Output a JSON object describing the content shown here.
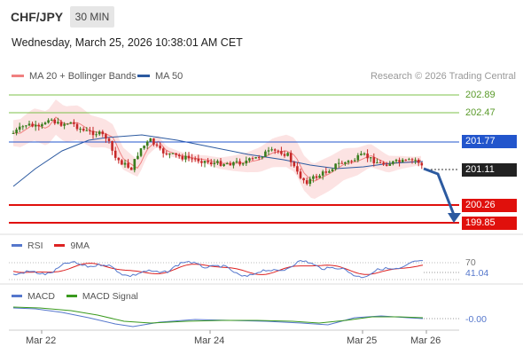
{
  "header": {
    "pair": "CHF/JPY",
    "timeframe": "30 MIN",
    "datetime": "Wednesday, March 25, 2026 10:38:01 AM CET"
  },
  "legend": {
    "ma20_label": "MA 20 + Bollinger Bands",
    "ma50_label": "MA 50",
    "copyright": "Research © 2026 Trading Central"
  },
  "levels": {
    "resistance2": "202.89",
    "resistance1": "202.47",
    "pivot": "201.77",
    "last": "201.11",
    "support1": "200.26",
    "support2": "199.85"
  },
  "rsi": {
    "label": "RSI",
    "ma_label": "9MA",
    "level_70": "70",
    "value": "41.04"
  },
  "macd": {
    "label": "MACD",
    "signal_label": "MACD Signal",
    "value": "-0.00"
  },
  "x_axis": [
    "Mar 22",
    "Mar 24",
    "Mar 25",
    "Mar 26"
  ],
  "colors": {
    "ma20": "#f08080",
    "ma50": "#2c5aa0",
    "bull": "#3a7d1e",
    "bear": "#c62828",
    "support": "#e0100c",
    "pivot": "#2255cc",
    "resistance": "#6fb83a",
    "arrow": "#2c5aa0",
    "rsi": "#5577cc",
    "rsi_ma": "#dd2222",
    "macd": "#5577cc",
    "macd_signal": "#3a9a1e"
  }
}
